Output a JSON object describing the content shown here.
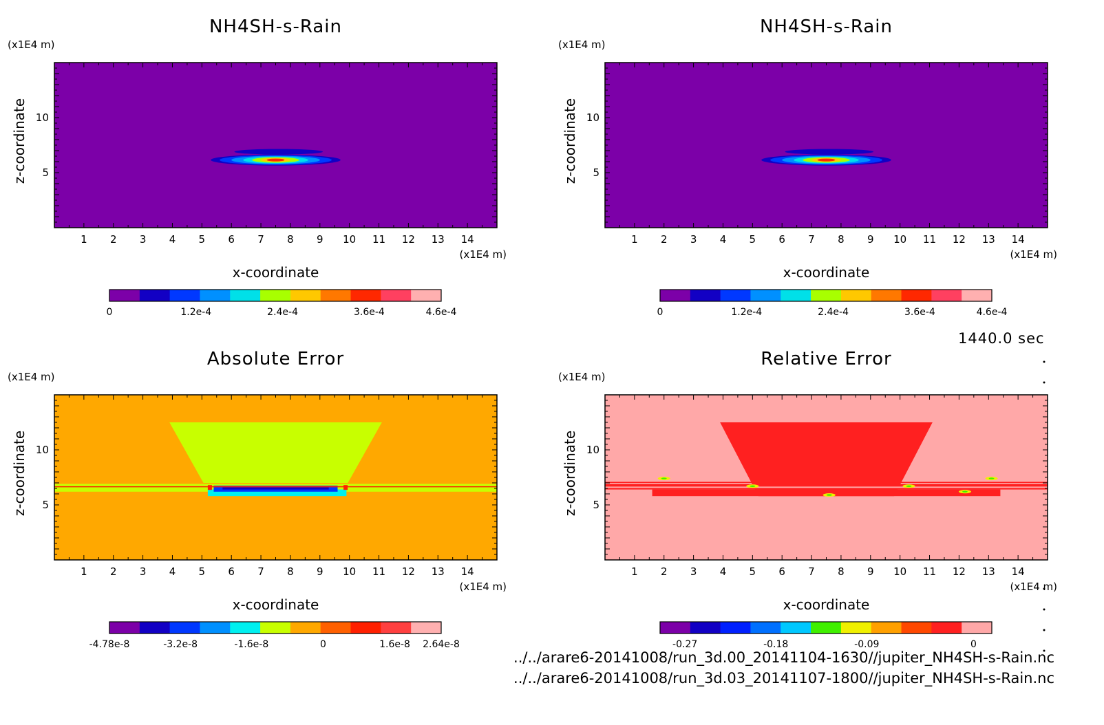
{
  "time_label": "1440.0 sec",
  "footer_lines": [
    "../../arare6-20141008/run_3d.00_20141104-1630//jupiter_NH4SH-s-Rain.nc",
    "../../arare6-20141008/run_3d.03_20141107-1800//jupiter_NH4SH-s-Rain.nc"
  ],
  "chart_data": [
    {
      "type": "heatmap",
      "title": "NH4SH-s-Rain",
      "xlabel": "x-coordinate",
      "ylabel": "z-coordinate",
      "x_unit": "(x1E4 m)",
      "y_unit": "(x1E4 m)",
      "xlim": [
        0,
        15
      ],
      "ylim": [
        0,
        15
      ],
      "x_ticks": [
        "1",
        "2",
        "3",
        "4",
        "5",
        "6",
        "7",
        "8",
        "9",
        "10",
        "11",
        "12",
        "13",
        "14"
      ],
      "y_ticks": [
        "5",
        "10"
      ],
      "background_color": "#7c00a8",
      "features": "single elongated maximum near x=7.5, z=6.2",
      "colorbar": {
        "colors": [
          "#7c00a8",
          "#1200c4",
          "#0038ff",
          "#0090ff",
          "#00e0e8",
          "#a8ff00",
          "#ffc800",
          "#ff7800",
          "#ff2800",
          "#ff4060",
          "#ffb0b0"
        ],
        "labels": [
          "0",
          "1.2e-4",
          "2.4e-4",
          "3.6e-4",
          "4.6e-4"
        ],
        "label_positions": [
          0,
          0.261,
          0.522,
          0.783,
          1.0
        ]
      }
    },
    {
      "type": "heatmap",
      "title": "NH4SH-s-Rain",
      "xlabel": "x-coordinate",
      "ylabel": "z-coordinate",
      "x_unit": "(x1E4 m)",
      "y_unit": "(x1E4 m)",
      "xlim": [
        0,
        15
      ],
      "ylim": [
        0,
        15
      ],
      "x_ticks": [
        "1",
        "2",
        "3",
        "4",
        "5",
        "6",
        "7",
        "8",
        "9",
        "10",
        "11",
        "12",
        "13",
        "14"
      ],
      "y_ticks": [
        "5",
        "10"
      ],
      "background_color": "#7c00a8",
      "features": "single elongated maximum near x=7.5, z=6.2",
      "colorbar": {
        "colors": [
          "#7c00a8",
          "#1200c4",
          "#0038ff",
          "#0090ff",
          "#00e0e8",
          "#a8ff00",
          "#ffc800",
          "#ff7800",
          "#ff2800",
          "#ff4060",
          "#ffb0b0"
        ],
        "labels": [
          "0",
          "1.2e-4",
          "2.4e-4",
          "3.6e-4",
          "4.6e-4"
        ],
        "label_positions": [
          0,
          0.261,
          0.522,
          0.783,
          1.0
        ]
      }
    },
    {
      "type": "heatmap",
      "title": "Absolute Error",
      "xlabel": "x-coordinate",
      "ylabel": "z-coordinate",
      "x_unit": "(x1E4 m)",
      "y_unit": "(x1E4 m)",
      "xlim": [
        0,
        15
      ],
      "ylim": [
        0,
        15
      ],
      "x_ticks": [
        "1",
        "2",
        "3",
        "4",
        "5",
        "6",
        "7",
        "8",
        "9",
        "10",
        "11",
        "12",
        "13",
        "14"
      ],
      "y_ticks": [
        "5",
        "10"
      ],
      "background_color": "#ffa800",
      "features": "trapezoidal yellow-green region z=6..12.5, blue band near z=6.5",
      "colorbar": {
        "colors": [
          "#7c00a8",
          "#1200c4",
          "#0038ff",
          "#0090ff",
          "#00f0f0",
          "#c8ff00",
          "#ffa800",
          "#ff6000",
          "#ff2000",
          "#ff4040",
          "#ffb0b0"
        ],
        "labels": [
          "-4.78e-8",
          "-3.2e-8",
          "-1.6e-8",
          "0",
          "1.6e-8",
          "2.64e-8"
        ],
        "label_positions": [
          0,
          0.214,
          0.428,
          0.644,
          0.86,
          1.0
        ]
      }
    },
    {
      "type": "heatmap",
      "title": "Relative Error",
      "xlabel": "x-coordinate",
      "ylabel": "z-coordinate",
      "x_unit": "(x1E4 m)",
      "y_unit": "(x1E4 m)",
      "xlim": [
        0,
        15
      ],
      "ylim": [
        0,
        15
      ],
      "x_ticks": [
        "1",
        "2",
        "3",
        "4",
        "5",
        "6",
        "7",
        "8",
        "9",
        "10",
        "11",
        "12",
        "13",
        "14"
      ],
      "y_ticks": [
        "5",
        "10"
      ],
      "background_color": "#ffa8a8",
      "features": "trapezoidal red region z=6..12.5 with horizontal red bands near z=6.5",
      "colorbar": {
        "colors": [
          "#7c00a8",
          "#1200c4",
          "#0020ff",
          "#0070ff",
          "#00c8ff",
          "#40f000",
          "#f0f000",
          "#ffa000",
          "#ff4800",
          "#ff2020",
          "#ffa8a8"
        ],
        "labels": [
          "-0.27",
          "-0.18",
          "-0.09",
          "0"
        ],
        "label_positions": [
          0.075,
          0.349,
          0.623,
          0.945
        ]
      }
    }
  ]
}
